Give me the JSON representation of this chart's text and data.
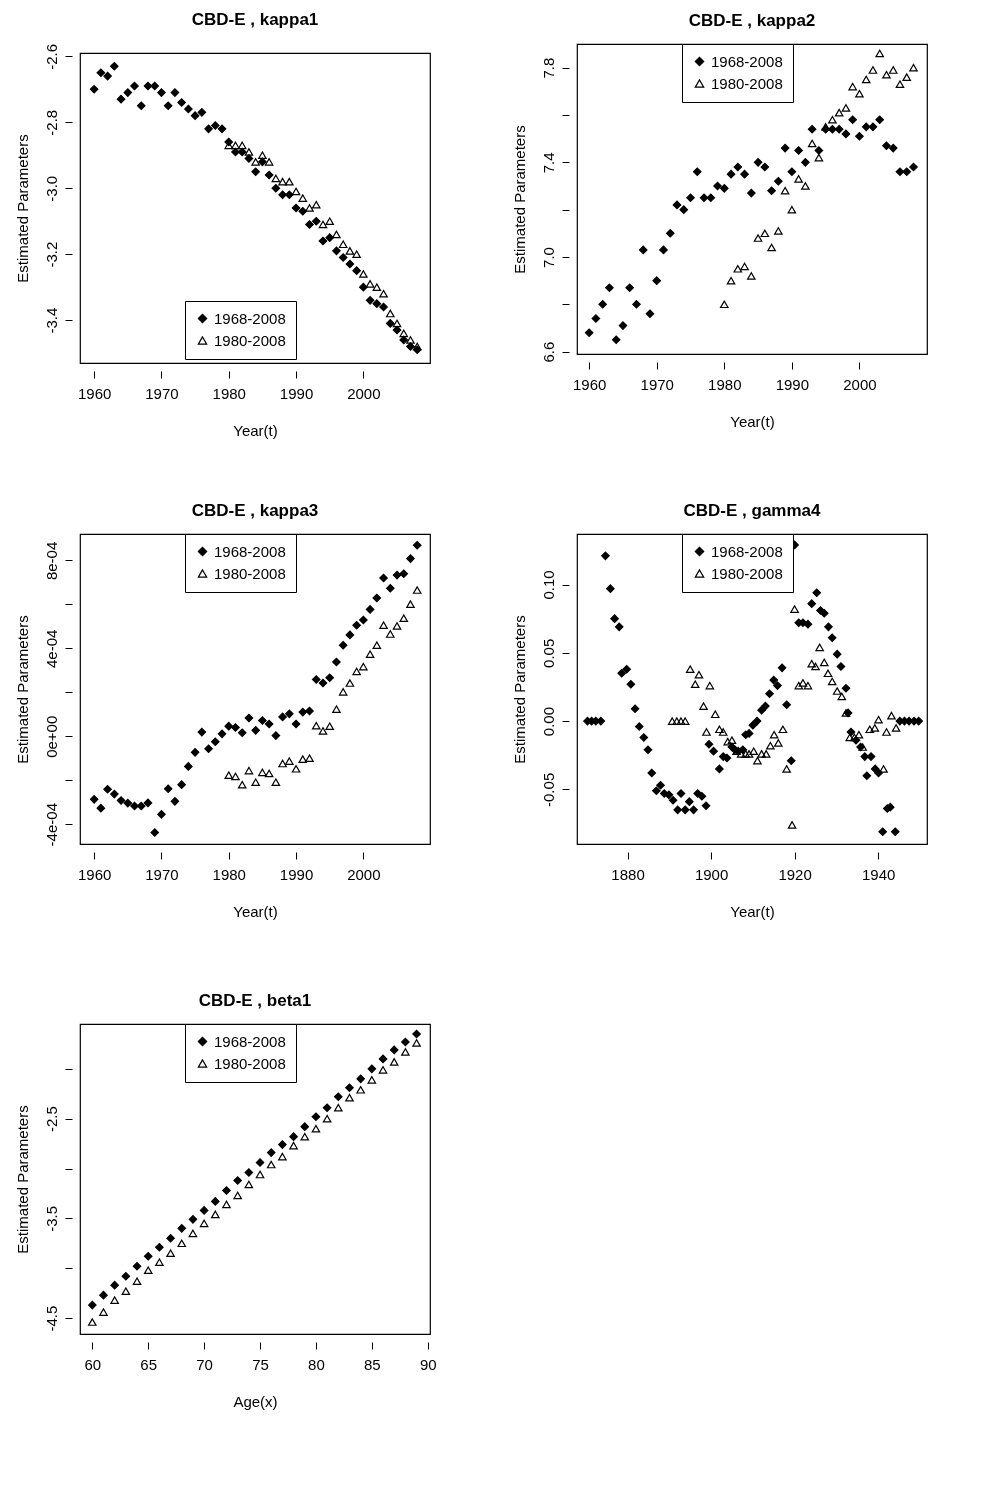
{
  "chart_data": [
    {
      "type": "scatter",
      "title": "CBD-E , kappa1",
      "xlabel": "Year(t)",
      "ylabel": "Estimated Parameters",
      "xlim": [
        1957.9,
        2009.9
      ],
      "xticks": [
        1960,
        1970,
        1980,
        1990,
        2000
      ],
      "ylim": [
        -3.53,
        -2.59
      ],
      "yticks": [
        -2.6,
        -2.8,
        {
          "value": -3.0,
          "label": "-3.0"
        },
        -3.2,
        -3.4
      ],
      "legend": "bottom",
      "series": [
        {
          "name": "1968-2008",
          "color": "#000000",
          "marker": "diamond",
          "x": [
            1960,
            1961,
            1962,
            1963,
            1964,
            1965,
            1966,
            1967,
            1968,
            1969,
            1970,
            1971,
            1972,
            1973,
            1974,
            1975,
            1976,
            1977,
            1978,
            1979,
            1980,
            1981,
            1982,
            1983,
            1984,
            1985,
            1986,
            1987,
            1988,
            1989,
            1990,
            1991,
            1992,
            1993,
            1994,
            1995,
            1996,
            1997,
            1998,
            1999,
            2000,
            2001,
            2002,
            2003,
            2004,
            2005,
            2006,
            2007,
            2008
          ],
          "values": [
            -2.7,
            -2.65,
            -2.66,
            -2.63,
            -2.73,
            -2.71,
            -2.69,
            -2.75,
            -2.69,
            -2.69,
            -2.71,
            -2.75,
            -2.71,
            -2.74,
            -2.76,
            -2.78,
            -2.77,
            -2.82,
            -2.81,
            -2.82,
            -2.86,
            -2.89,
            -2.89,
            -2.91,
            -2.95,
            -2.92,
            -2.96,
            -3.0,
            -3.02,
            -3.02,
            -3.06,
            -3.07,
            -3.11,
            -3.1,
            -3.16,
            -3.15,
            -3.19,
            -3.21,
            -3.23,
            -3.25,
            -3.3,
            -3.34,
            -3.35,
            -3.36,
            -3.41,
            -3.43,
            -3.46,
            -3.48,
            -3.49
          ]
        },
        {
          "name": "1980-2008",
          "color": "#000000",
          "marker": "triangle",
          "x": [
            1980,
            1981,
            1982,
            1983,
            1984,
            1985,
            1986,
            1987,
            1988,
            1989,
            1990,
            1991,
            1992,
            1993,
            1994,
            1995,
            1996,
            1997,
            1998,
            1999,
            2000,
            2001,
            2002,
            2003,
            2004,
            2005,
            2006,
            2007,
            2008
          ],
          "values": [
            -2.87,
            -2.87,
            -2.87,
            -2.89,
            -2.92,
            -2.9,
            -2.92,
            -2.97,
            -2.98,
            -2.98,
            -3.01,
            -3.03,
            -3.06,
            -3.05,
            -3.11,
            -3.1,
            -3.14,
            -3.17,
            -3.19,
            -3.2,
            -3.26,
            -3.29,
            -3.3,
            -3.32,
            -3.38,
            -3.41,
            -3.44,
            -3.46,
            -3.48
          ]
        }
      ]
    },
    {
      "type": "scatter",
      "title": "CBD-E , kappa2",
      "xlabel": "Year(t)",
      "ylabel": "Estimated Parameters",
      "xlim": [
        1958.2,
        2010.0
      ],
      "xticks": [
        1960,
        1970,
        1980,
        1990,
        2000
      ],
      "ylim": [
        6.59,
        7.9
      ],
      "yticks": [
        6.6,
        {
          "value": 6.8,
          "label": null
        },
        {
          "value": 7.0,
          "label": "7.0"
        },
        {
          "value": 7.2,
          "label": null
        },
        7.4,
        {
          "value": 7.6,
          "label": null
        },
        7.8
      ],
      "legend": "top",
      "series": [
        {
          "name": "1968-2008",
          "color": "#000000",
          "marker": "diamond",
          "x": [
            1960,
            1961,
            1962,
            1963,
            1964,
            1965,
            1966,
            1967,
            1968,
            1969,
            1970,
            1971,
            1972,
            1973,
            1974,
            1975,
            1976,
            1977,
            1978,
            1979,
            1980,
            1981,
            1982,
            1983,
            1984,
            1985,
            1986,
            1987,
            1988,
            1989,
            1990,
            1991,
            1992,
            1993,
            1994,
            1995,
            1996,
            1997,
            1998,
            1999,
            2000,
            2001,
            2002,
            2003,
            2004,
            2005,
            2006,
            2007,
            2008
          ],
          "values": [
            6.68,
            6.74,
            6.8,
            6.87,
            6.65,
            6.71,
            6.87,
            6.8,
            7.03,
            6.76,
            6.9,
            7.03,
            7.1,
            7.22,
            7.2,
            7.25,
            7.36,
            7.25,
            7.25,
            7.3,
            7.29,
            7.35,
            7.38,
            7.35,
            7.27,
            7.4,
            7.38,
            7.28,
            7.32,
            7.46,
            7.36,
            7.45,
            7.4,
            7.54,
            7.45,
            7.54,
            7.54,
            7.54,
            7.52,
            7.58,
            7.51,
            7.55,
            7.55,
            7.58,
            7.47,
            7.46,
            7.36,
            7.36,
            7.38
          ]
        },
        {
          "name": "1980-2008",
          "color": "#000000",
          "marker": "triangle",
          "x": [
            1980,
            1981,
            1982,
            1983,
            1984,
            1985,
            1986,
            1987,
            1988,
            1989,
            1990,
            1991,
            1992,
            1993,
            1994,
            1995,
            1996,
            1997,
            1998,
            1999,
            2000,
            2001,
            2002,
            2003,
            2004,
            2005,
            2006,
            2007,
            2008
          ],
          "values": [
            6.8,
            6.9,
            6.95,
            6.96,
            6.92,
            7.08,
            7.1,
            7.04,
            7.11,
            7.28,
            7.2,
            7.33,
            7.3,
            7.48,
            7.42,
            7.55,
            7.58,
            7.61,
            7.63,
            7.72,
            7.69,
            7.75,
            7.79,
            7.86,
            7.77,
            7.79,
            7.73,
            7.76,
            7.8
          ]
        }
      ]
    },
    {
      "type": "scatter",
      "title": "CBD-E , kappa3",
      "xlabel": "Year(t)",
      "ylabel": "Estimated Parameters",
      "xlim": [
        1957.9,
        2009.9
      ],
      "xticks": [
        1960,
        1970,
        1980,
        1990,
        2000
      ],
      "ylim": [
        -0.00049,
        0.00092
      ],
      "yticks": [
        {
          "value": -0.0004,
          "label": "-4e-04"
        },
        {
          "value": -0.0002,
          "label": null
        },
        {
          "value": 0,
          "label": "0e+00"
        },
        {
          "value": 0.0002,
          "label": null
        },
        {
          "value": 0.0004,
          "label": "4e-04"
        },
        {
          "value": 0.0006,
          "label": null
        },
        {
          "value": 0.0008,
          "label": "8e-04"
        }
      ],
      "legend": "top",
      "series": [
        {
          "name": "1968-2008",
          "color": "#000000",
          "marker": "diamond",
          "x": [
            1960,
            1961,
            1962,
            1963,
            1964,
            1965,
            1966,
            1967,
            1968,
            1969,
            1970,
            1971,
            1972,
            1973,
            1974,
            1975,
            1976,
            1977,
            1978,
            1979,
            1980,
            1981,
            1982,
            1983,
            1984,
            1985,
            1986,
            1987,
            1988,
            1989,
            1990,
            1991,
            1992,
            1993,
            1994,
            1995,
            1996,
            1997,
            1998,
            1999,
            2000,
            2001,
            2002,
            2003,
            2004,
            2005,
            2006,
            2007,
            2008
          ],
          "values": [
            -0.000287,
            -0.000327,
            -0.000241,
            -0.000263,
            -0.000292,
            -0.000304,
            -0.000317,
            -0.000317,
            -0.000303,
            -0.000438,
            -0.000355,
            -0.000239,
            -0.000296,
            -0.00022,
            -0.000137,
            -7.3e-05,
            1.9e-05,
            -5.7e-05,
            -2.5e-05,
            1.1e-05,
            4.6e-05,
            4e-05,
            1.6e-05,
            8.3e-05,
            2.7e-05,
            7.2e-05,
            5.6e-05,
            3e-06,
            8.8e-05,
            0.000102,
            5.6e-05,
            0.00011,
            0.000115,
            0.000258,
            0.000242,
            0.000266,
            0.000338,
            0.000414,
            0.000461,
            0.000505,
            0.000529,
            0.000577,
            0.000629,
            0.00072,
            0.000673,
            0.000733,
            0.000739,
            0.000808,
            0.000869
          ]
        },
        {
          "name": "1980-2008",
          "color": "#000000",
          "marker": "triangle",
          "x": [
            1980,
            1981,
            1982,
            1983,
            1984,
            1985,
            1986,
            1987,
            1988,
            1989,
            1990,
            1991,
            1992,
            1993,
            1994,
            1995,
            1996,
            1997,
            1998,
            1999,
            2000,
            2001,
            2002,
            2003,
            2004,
            2005,
            2006,
            2007,
            2008
          ],
          "values": [
            -0.000177,
            -0.000183,
            -0.00022,
            -0.000156,
            -0.000209,
            -0.000164,
            -0.000169,
            -0.000209,
            -0.000124,
            -0.000113,
            -0.000148,
            -0.000104,
            -0.0001,
            4.8e-05,
            2.4e-05,
            4.6e-05,
            0.000123,
            0.000202,
            0.000242,
            0.000295,
            0.000317,
            0.000373,
            0.000414,
            0.000505,
            0.000465,
            0.000502,
            0.000537,
            0.000601,
            0.000665
          ]
        }
      ]
    },
    {
      "type": "scatter",
      "title": "CBD-E , gamma4",
      "xlabel": "Year(t)",
      "ylabel": "Estimated Parameters",
      "xlim": [
        1867.9,
        1951.7
      ],
      "xticks": [
        1880,
        1900,
        1920,
        1940
      ],
      "ylim": [
        -0.09,
        0.137
      ],
      "yticks": [
        {
          "value": -0.05,
          "label": "-0.05"
        },
        {
          "value": 0,
          "label": "0.00"
        },
        {
          "value": 0.05,
          "label": "0.05"
        },
        {
          "value": 0.1,
          "label": "0.10"
        }
      ],
      "legend": "top",
      "series": [
        {
          "name": "1968-2008",
          "color": "#000000",
          "marker": "diamond",
          "x": [
            1870.4,
            1871.4,
            1872.4,
            1873.6,
            1874.7,
            1875.9,
            1876.9,
            1878.0,
            1878.6,
            1879.8,
            1880.8,
            1881.8,
            1882.8,
            1883.9,
            1884.9,
            1885.8,
            1886.9,
            1887.9,
            1888.8,
            1889.9,
            1890.9,
            1892.0,
            1892.8,
            1893.8,
            1894.8,
            1895.8,
            1896.8,
            1897.8,
            1898.8,
            1899.5,
            1900.6,
            1902.0,
            1902.9,
            1903.8,
            1905.0,
            1905.7,
            1906.5,
            1907.6,
            1908.3,
            1909.1,
            1910.0,
            1911.0,
            1912.1,
            1913.0,
            1914.0,
            1915.0,
            1915.9,
            1917.0,
            1918.1,
            1919.2,
            1920.0,
            1921.0,
            1922.0,
            1923.2,
            1924.1,
            1925.3,
            1926.2,
            1927.1,
            1928.1,
            1929.0,
            1930.2,
            1931.1,
            1932.3,
            1932.8,
            1933.5,
            1934.7,
            1935.8,
            1936.8,
            1937.3,
            1938.3,
            1939.3,
            1940.1,
            1941.1,
            1942.2,
            1942.9,
            1944.1,
            1945.2,
            1946.3,
            1947.4,
            1948.6,
            1949.7
          ],
          "values": [
            0,
            0,
            0,
            0,
            0.121,
            0.097,
            0.075,
            0.069,
            0.035,
            0.038,
            0.027,
            0.009,
            -0.004,
            -0.012,
            -0.021,
            -0.038,
            -0.051,
            -0.047,
            -0.053,
            -0.054,
            -0.058,
            -0.065,
            -0.053,
            -0.065,
            -0.059,
            -0.065,
            -0.053,
            -0.055,
            -0.062,
            -0.017,
            -0.022,
            -0.035,
            -0.026,
            -0.027,
            -0.019,
            -0.021,
            -0.022,
            -0.021,
            -0.01,
            -0.009,
            -0.003,
            0,
            0.008,
            0.011,
            0.02,
            0.03,
            0.026,
            0.039,
            0.012,
            -0.029,
            0.129,
            0.072,
            0.072,
            0.071,
            0.086,
            0.094,
            0.081,
            0.079,
            0.069,
            0.061,
            0.049,
            0.04,
            0.024,
            0.006,
            -0.008,
            -0.014,
            -0.019,
            -0.026,
            -0.04,
            -0.026,
            -0.035,
            -0.038,
            -0.081,
            -0.064,
            -0.063,
            -0.081,
            0,
            0,
            0,
            0,
            0
          ]
        },
        {
          "name": "1980-2008",
          "color": "#000000",
          "marker": "triangle",
          "x": [
            1890.7,
            1891.8,
            1892.8,
            1893.8,
            1895.0,
            1896.2,
            1897.1,
            1898.2,
            1898.9,
            1899.7,
            1901.0,
            1902.0,
            1902.9,
            1904.0,
            1905.0,
            1906.1,
            1907.2,
            1908.3,
            1909.1,
            1910.2,
            1911.1,
            1912.1,
            1913.2,
            1914.2,
            1915.1,
            1916.1,
            1917.2,
            1918.1,
            1919.4,
            1920.0,
            1921.0,
            1922.0,
            1923.2,
            1924.1,
            1925.0,
            1926.0,
            1927.1,
            1928.0,
            1929.0,
            1930.2,
            1931.3,
            1932.3,
            1933.2,
            1934.3,
            1935.4,
            1936.3,
            1938.0,
            1939.2,
            1940.1,
            1941.3,
            1942.0,
            1943.2,
            1944.3
          ],
          "values": [
            0,
            0,
            0,
            0,
            0.038,
            0.027,
            0.034,
            0.011,
            -0.008,
            0.026,
            0.005,
            -0.006,
            -0.008,
            -0.015,
            -0.014,
            -0.022,
            -0.024,
            -0.024,
            -0.024,
            -0.022,
            -0.029,
            -0.024,
            -0.024,
            -0.018,
            -0.01,
            -0.016,
            -0.006,
            -0.035,
            -0.076,
            0.082,
            0.026,
            0.028,
            0.026,
            0.042,
            0.04,
            0.054,
            0.043,
            0.035,
            0.029,
            0.022,
            0.018,
            0.006,
            -0.012,
            -0.012,
            -0.01,
            -0.019,
            -0.006,
            -0.005,
            0.001,
            -0.035,
            -0.008,
            0.004,
            -0.005
          ]
        }
      ]
    },
    {
      "type": "scatter",
      "title": "CBD-E , beta1",
      "xlabel": "Age(x)",
      "ylabel": "Estimated Parameters",
      "xlim": [
        58.9,
        90.2
      ],
      "xticks": [
        60,
        65,
        70,
        75,
        80,
        85,
        90
      ],
      "ylim": [
        -4.66,
        -1.55
      ],
      "yticks": [
        -4.5,
        {
          "value": -4,
          "label": null
        },
        -3.5,
        {
          "value": -3,
          "label": null
        },
        -2.5,
        {
          "value": -2,
          "label": null
        }
      ],
      "legend": "top",
      "series": [
        {
          "name": "1968-2008",
          "color": "#000000",
          "marker": "diamond",
          "x": [
            60,
            61,
            62,
            63,
            64,
            65,
            66,
            67,
            68,
            69,
            70,
            71,
            72,
            73,
            74,
            75,
            76,
            77,
            78,
            79,
            80,
            81,
            82,
            83,
            84,
            85,
            86,
            87,
            88,
            89
          ],
          "values": [
            -4.37,
            -4.27,
            -4.17,
            -4.08,
            -3.98,
            -3.88,
            -3.79,
            -3.7,
            -3.6,
            -3.51,
            -3.42,
            -3.33,
            -3.22,
            -3.12,
            -3.04,
            -2.94,
            -2.84,
            -2.76,
            -2.68,
            -2.58,
            -2.48,
            -2.39,
            -2.28,
            -2.19,
            -2.1,
            -2.0,
            -1.9,
            -1.81,
            -1.73,
            -1.65
          ]
        },
        {
          "name": "1980-2008",
          "color": "#000000",
          "marker": "triangle",
          "x": [
            60,
            61,
            62,
            63,
            64,
            65,
            66,
            67,
            68,
            69,
            70,
            71,
            72,
            73,
            74,
            75,
            76,
            77,
            78,
            79,
            80,
            81,
            82,
            83,
            84,
            85,
            86,
            87,
            88,
            89
          ],
          "values": [
            -4.54,
            -4.44,
            -4.32,
            -4.23,
            -4.13,
            -4.02,
            -3.94,
            -3.85,
            -3.75,
            -3.65,
            -3.55,
            -3.46,
            -3.36,
            -3.27,
            -3.16,
            -3.06,
            -2.96,
            -2.88,
            -2.77,
            -2.68,
            -2.6,
            -2.5,
            -2.39,
            -2.29,
            -2.21,
            -2.11,
            -2.01,
            -1.93,
            -1.83,
            -1.74
          ]
        }
      ]
    }
  ]
}
